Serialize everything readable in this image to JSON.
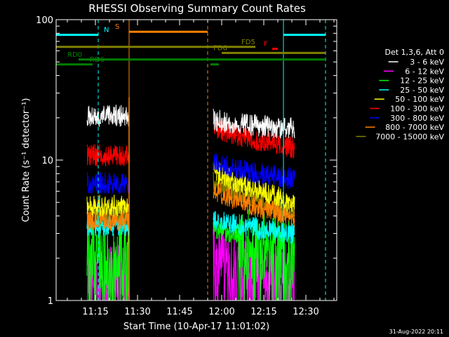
{
  "chart_data": {
    "type": "line",
    "title": "RHESSI Observing Summary Count Rates",
    "xlabel": "Start Time (10-Apr-17 11:01:02)",
    "ylabel": "Count Rate (s⁻¹ detector⁻¹)",
    "footer_date": "31-Aug-2022 20:11",
    "y_log": true,
    "ylim": [
      1,
      100
    ],
    "y_ticks": [
      {
        "value": 1,
        "label": "1"
      },
      {
        "value": 10,
        "label": "10"
      },
      {
        "value": 100,
        "label": "100"
      }
    ],
    "xlim": [
      "11:01",
      "12:41"
    ],
    "x_ticks": [
      "11:15",
      "11:30",
      "11:45",
      "12:00",
      "12:15",
      "12:30"
    ],
    "legend": {
      "header": "Det 1,3,6, Att 0",
      "placement": "right",
      "entries": [
        {
          "label": "3 - 6 keV",
          "color": "#ffffff"
        },
        {
          "label": "6 - 12 keV",
          "color": "#ff00ff"
        },
        {
          "label": "12 - 25 keV",
          "color": "#00ff00"
        },
        {
          "label": "25 - 50 keV",
          "color": "#00ffff"
        },
        {
          "label": "50 - 100 keV",
          "color": "#ffff00"
        },
        {
          "label": "100 - 300 keV",
          "color": "#ff0000"
        },
        {
          "label": "300 - 800 keV",
          "color": "#0000ff"
        },
        {
          "label": "800 - 7000 keV",
          "color": "#ff8000"
        },
        {
          "label": "7000 - 15000 keV",
          "color": "#808000"
        }
      ]
    },
    "data_intervals": [
      {
        "start": "11:12",
        "end": "11:27"
      },
      {
        "start": "11:57",
        "end": "12:26"
      }
    ],
    "series": [
      {
        "name": "3 - 6 keV",
        "color": "#ffffff",
        "level_1": 21,
        "level_2_start": 20,
        "level_2_end": 17
      },
      {
        "name": "6 - 12 keV",
        "color": "#ff00ff",
        "level_1": 1.6,
        "level_2_start": 2.5,
        "level_2_end": 1.6
      },
      {
        "name": "12 - 25 keV",
        "color": "#00ff00",
        "level_1": 2.4,
        "level_2_start": 3.5,
        "level_2_end": 2.5
      },
      {
        "name": "25 - 50 keV",
        "color": "#00ffff",
        "level_1": 3.5,
        "level_2_start": 4.0,
        "level_2_end": 3.0
      },
      {
        "name": "50 - 100 keV",
        "color": "#ffff00",
        "level_1": 4.8,
        "level_2_start": 9.0,
        "level_2_end": 5.0
      },
      {
        "name": "100 - 300 keV",
        "color": "#ff0000",
        "level_1": 11.0,
        "level_2_start": 18.0,
        "level_2_end": 12.5
      },
      {
        "name": "300 - 800 keV",
        "color": "#0000ff",
        "level_1": 7.0,
        "level_2_start": 10.0,
        "level_2_end": 7.5
      },
      {
        "name": "800 - 7000 keV",
        "color": "#ff8000",
        "level_1": 3.8,
        "level_2_start": 6.5,
        "level_2_end": 4.0
      },
      {
        "name": "7000 - 15000 keV",
        "color": "#808000",
        "level_1": 4.2,
        "level_2_start": 7.5,
        "level_2_end": 4.5
      }
    ],
    "spike": {
      "time": "11:27",
      "value": 28,
      "color": "#ff8000"
    },
    "vlines": [
      {
        "time": "11:01",
        "color": "#00ffff",
        "style": "solid"
      },
      {
        "time": "11:16",
        "color": "#00ffff",
        "style": "dashed"
      },
      {
        "time": "11:27",
        "color": "#ff8000",
        "style": "solid"
      },
      {
        "time": "11:55",
        "color": "#ff8000",
        "style": "dashed"
      },
      {
        "time": "12:22",
        "color": "#00ffff",
        "style": "solid"
      },
      {
        "time": "12:37",
        "color": "#00ffff",
        "style": "dashed"
      }
    ],
    "flag_bars": [
      {
        "label": "N",
        "color": "#00ffff",
        "segments": [
          [
            "11:01",
            "11:16"
          ],
          [
            "12:22",
            "12:37"
          ]
        ],
        "y": 78,
        "label_time": "11:18"
      },
      {
        "label": "S",
        "color": "#ff8000",
        "segments": [
          [
            "11:27",
            "11:55"
          ]
        ],
        "y": 82,
        "label_time": "11:22"
      },
      {
        "label": "F",
        "color": "#ff0000",
        "segments": [
          [
            "12:18",
            "12:20"
          ]
        ],
        "y": 62,
        "label_time": "12:15"
      },
      {
        "label": "FD5",
        "color": "#808000",
        "segments": [
          [
            "11:01",
            "12:12"
          ]
        ],
        "y": 64,
        "label_time": "12:07"
      },
      {
        "label": "FD6",
        "color": "#808000",
        "segments": [
          [
            "12:00",
            "12:37"
          ]
        ],
        "y": 58,
        "label_time": "11:57"
      },
      {
        "label": "RD0",
        "color": "#008000",
        "segments": [
          [
            "11:09",
            "12:37"
          ]
        ],
        "y": 52,
        "label_time": "11:05"
      },
      {
        "label": "RD6",
        "color": "#008000",
        "segments": [
          [
            "11:01",
            "11:14"
          ],
          [
            "11:56",
            "11:59"
          ]
        ],
        "y": 48,
        "label_time": "11:13"
      }
    ]
  }
}
